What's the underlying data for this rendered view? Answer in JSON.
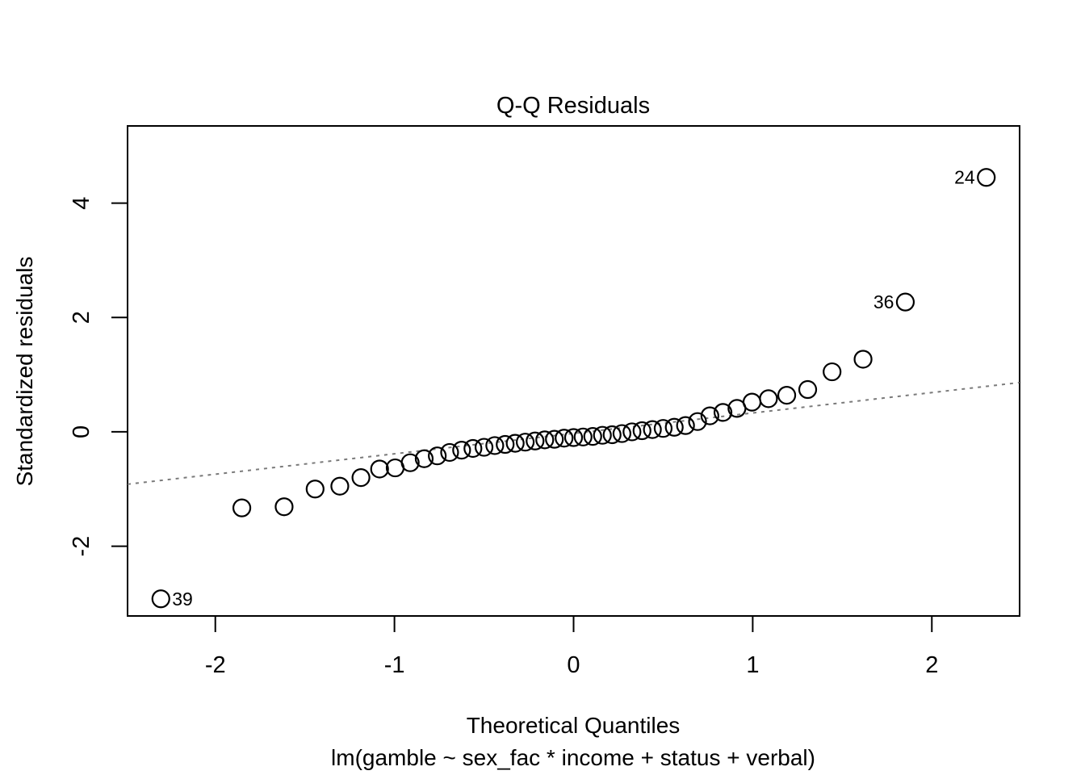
{
  "chart_data": {
    "type": "scatter",
    "title": "Q-Q Residuals",
    "xlabel": "Theoretical Quantiles",
    "model_caption": "lm(gamble ~ sex_fac * income + status + verbal)",
    "ylabel": "Standardized residuals",
    "xlim": [
      -2.49,
      2.49
    ],
    "ylim": [
      -3.22,
      5.35
    ],
    "x_ticks": [
      -2,
      -1,
      0,
      1,
      2
    ],
    "y_ticks": [
      -2,
      0,
      2,
      4
    ],
    "grid": false,
    "legend": null,
    "points": [
      [
        -2.304,
        -2.92
      ],
      [
        -1.852,
        -1.33
      ],
      [
        -1.616,
        -1.31
      ],
      [
        -1.443,
        -1.0
      ],
      [
        -1.305,
        -0.95
      ],
      [
        -1.187,
        -0.8
      ],
      [
        -1.083,
        -0.65
      ],
      [
        -0.996,
        -0.63
      ],
      [
        -0.912,
        -0.54
      ],
      [
        -0.834,
        -0.47
      ],
      [
        -0.761,
        -0.42
      ],
      [
        -0.692,
        -0.36
      ],
      [
        -0.625,
        -0.32
      ],
      [
        -0.562,
        -0.29
      ],
      [
        -0.5,
        -0.27
      ],
      [
        -0.44,
        -0.24
      ],
      [
        -0.382,
        -0.22
      ],
      [
        -0.326,
        -0.2
      ],
      [
        -0.27,
        -0.18
      ],
      [
        -0.215,
        -0.16
      ],
      [
        -0.161,
        -0.14
      ],
      [
        -0.107,
        -0.13
      ],
      [
        -0.053,
        -0.11
      ],
      [
        0.0,
        -0.1
      ],
      [
        0.053,
        -0.09
      ],
      [
        0.107,
        -0.08
      ],
      [
        0.161,
        -0.06
      ],
      [
        0.215,
        -0.05
      ],
      [
        0.27,
        -0.03
      ],
      [
        0.326,
        0.0
      ],
      [
        0.382,
        0.02
      ],
      [
        0.44,
        0.04
      ],
      [
        0.5,
        0.06
      ],
      [
        0.562,
        0.08
      ],
      [
        0.625,
        0.11
      ],
      [
        0.692,
        0.18
      ],
      [
        0.761,
        0.28
      ],
      [
        0.834,
        0.34
      ],
      [
        0.912,
        0.41
      ],
      [
        0.996,
        0.52
      ],
      [
        1.088,
        0.58
      ],
      [
        1.19,
        0.64
      ],
      [
        1.307,
        0.74
      ],
      [
        1.443,
        1.05
      ],
      [
        1.616,
        1.27
      ],
      [
        1.852,
        2.27
      ],
      [
        2.304,
        4.45
      ]
    ],
    "outlier_labels": [
      {
        "label": "39",
        "x": -2.304,
        "y": -2.92,
        "side": "right"
      },
      {
        "label": "36",
        "x": 1.852,
        "y": 2.27,
        "side": "left"
      },
      {
        "label": "24",
        "x": 2.304,
        "y": 4.45,
        "side": "left"
      }
    ],
    "reference_line": {
      "slope": 0.357,
      "intercept": -0.027,
      "style": "dotted",
      "color": "#7a7a7a"
    },
    "colors": {
      "foreground": "#000000",
      "background": "#ffffff",
      "ref_line": "#7a7a7a"
    }
  }
}
